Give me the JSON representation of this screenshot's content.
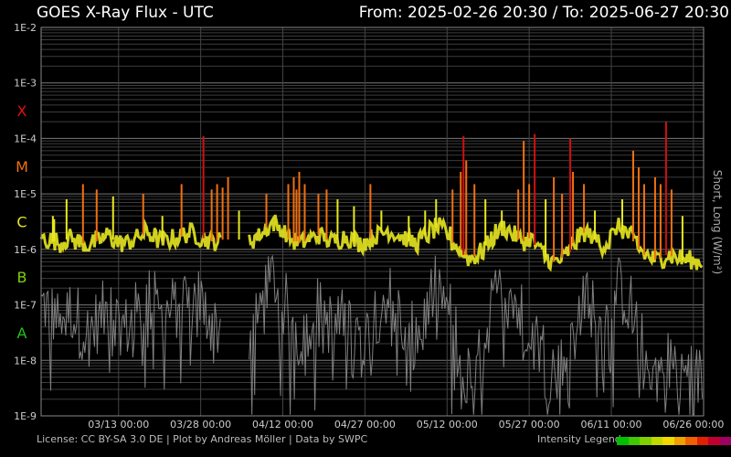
{
  "header": {
    "title": "GOES X-Ray Flux - UTC",
    "range": "From: 2025-02-26 20:30  /  To: 2025-06-27 20:30"
  },
  "footer": {
    "license": "License: CC BY-SA 3.0 DE | Plot by Andreas Möller | Data by SWPC",
    "legend_label": "Intensity Legend",
    "legend_colors": [
      "#00c000",
      "#40c800",
      "#80d000",
      "#c0d800",
      "#f0d800",
      "#f0a000",
      "#f06000",
      "#e02000",
      "#c00030",
      "#a00060"
    ]
  },
  "chart_data": {
    "type": "line",
    "title": "GOES X-Ray Flux - UTC",
    "ylabel": "Short, Long (W/m²)",
    "y_scale": "log",
    "ylim": [
      1e-09,
      0.01
    ],
    "y_ticks": [
      "1E-2",
      "1E-3",
      "1E-4",
      "1E-5",
      "1E-6",
      "1E-7",
      "1E-8",
      "1E-9"
    ],
    "flare_classes": [
      {
        "label": "X",
        "color": "#e01010"
      },
      {
        "label": "M",
        "color": "#f07010"
      },
      {
        "label": "C",
        "color": "#e8e820"
      },
      {
        "label": "B",
        "color": "#80d010"
      },
      {
        "label": "A",
        "color": "#20c020"
      }
    ],
    "xlim": [
      "2025-02-26 20:30",
      "2025-06-27 20:30"
    ],
    "x_ticks": [
      "03/13 00:00",
      "03/28 00:00",
      "04/12 00:00",
      "04/27 00:00",
      "05/12 00:00",
      "05/27 00:00",
      "06/11 00:00",
      "06/26 00:00"
    ],
    "grid": true,
    "series": [
      {
        "name": "Long",
        "color": "#e8e820",
        "daily_baseline": [
          1.6e-06,
          1.5e-06,
          1.4e-06,
          1.3e-06,
          1.5e-06,
          1.6e-06,
          1.4e-06,
          1.3e-06,
          1.2e-06,
          1.3e-06,
          1.4e-06,
          1.6e-06,
          1.8e-06,
          1.5e-06,
          1.3e-06,
          1.3e-06,
          1.4e-06,
          1.6e-06,
          1.8e-06,
          2e-06,
          1.8e-06,
          1.5e-06,
          1.4e-06,
          1.5e-06,
          1.6e-06,
          1.7e-06,
          1.9e-06,
          2e-06,
          1.8e-06,
          1.6e-06,
          1.5e-06,
          1.4e-06,
          1.4e-06,
          null,
          null,
          null,
          null,
          null,
          1.5e-06,
          1.7e-06,
          2e-06,
          2.5e-06,
          3e-06,
          2.5e-06,
          2e-06,
          1.6e-06,
          1.4e-06,
          1.3e-06,
          1.4e-06,
          1.6e-06,
          1.8e-06,
          1.7e-06,
          1.5e-06,
          1.4e-06,
          1.5e-06,
          1.7e-06,
          1.6e-06,
          1.4e-06,
          1.3e-06,
          1.4e-06,
          1.6e-06,
          1.8e-06,
          2e-06,
          2.2e-06,
          2e-06,
          1.8e-06,
          1.6e-06,
          1.4e-06,
          1.3e-06,
          1.5e-06,
          1.8e-06,
          2.2e-06,
          2.5e-06,
          2.2e-06,
          1.8e-06,
          1.3e-06,
          1e-06,
          8e-07,
          7e-07,
          7.5e-07,
          9e-07,
          1.2e-06,
          1.6e-06,
          2e-06,
          2.5e-06,
          2.2e-06,
          1.8e-06,
          1.5e-06,
          1.4e-06,
          1.6e-06,
          1.2e-06,
          9e-07,
          7e-07,
          6e-07,
          6e-07,
          7e-07,
          9e-07,
          1.3e-06,
          1.7e-06,
          2e-06,
          1.8e-06,
          1.5e-06,
          1.2e-06,
          1.3e-06,
          1.8e-06,
          2.5e-06,
          2.2e-06,
          1.8e-06,
          1.4e-06,
          1e-06,
          8e-07,
          7e-07,
          6.5e-07,
          7e-07,
          8e-07,
          7.5e-07,
          7e-07,
          6.5e-07,
          6.5e-07,
          6e-07,
          6e-07
        ],
        "peaks": [
          {
            "time": "2025-03-01 00:00",
            "value": 4e-06
          },
          {
            "time": "2025-03-01 06:00",
            "value": 3.5e-06
          },
          {
            "time": "2025-03-03 12:00",
            "value": 8e-06
          },
          {
            "time": "2025-03-06 12:00",
            "value": 1.5e-05
          },
          {
            "time": "2025-03-09 00:00",
            "value": 1.2e-05
          },
          {
            "time": "2025-03-12 00:00",
            "value": 9e-06
          },
          {
            "time": "2025-03-17 12:00",
            "value": 1e-05
          },
          {
            "time": "2025-03-21 00:00",
            "value": 4e-06
          },
          {
            "time": "2025-03-24 12:00",
            "value": 1.5e-05
          },
          {
            "time": "2025-03-28 12:00",
            "value": 0.00011
          },
          {
            "time": "2025-03-30 00:00",
            "value": 1.2e-05
          },
          {
            "time": "2025-03-31 00:00",
            "value": 1.5e-05
          },
          {
            "time": "2025-04-01 00:00",
            "value": 1.3e-05
          },
          {
            "time": "2025-04-02 00:00",
            "value": 2e-05
          },
          {
            "time": "2025-04-04 00:00",
            "value": 5e-06
          },
          {
            "time": "2025-04-09 00:00",
            "value": 1e-05
          },
          {
            "time": "2025-04-13 00:00",
            "value": 1.5e-05
          },
          {
            "time": "2025-04-14 00:00",
            "value": 2e-05
          },
          {
            "time": "2025-04-14 12:00",
            "value": 1.2e-05
          },
          {
            "time": "2025-04-15 00:00",
            "value": 2.5e-05
          },
          {
            "time": "2025-04-16 00:00",
            "value": 1.5e-05
          },
          {
            "time": "2025-04-18 12:00",
            "value": 1e-05
          },
          {
            "time": "2025-04-20 00:00",
            "value": 1.2e-05
          },
          {
            "time": "2025-04-22 00:00",
            "value": 8e-06
          },
          {
            "time": "2025-04-25 00:00",
            "value": 6e-06
          },
          {
            "time": "2025-04-28 00:00",
            "value": 1.5e-05
          },
          {
            "time": "2025-04-30 00:00",
            "value": 5e-06
          },
          {
            "time": "2025-05-05 00:00",
            "value": 4e-06
          },
          {
            "time": "2025-05-08 00:00",
            "value": 5e-06
          },
          {
            "time": "2025-05-10 00:00",
            "value": 8e-06
          },
          {
            "time": "2025-05-13 00:00",
            "value": 1.2e-05
          },
          {
            "time": "2025-05-14 12:00",
            "value": 2.5e-05
          },
          {
            "time": "2025-05-15 00:00",
            "value": 0.00011
          },
          {
            "time": "2025-05-15 12:00",
            "value": 4e-05
          },
          {
            "time": "2025-05-17 00:00",
            "value": 1.5e-05
          },
          {
            "time": "2025-05-19 00:00",
            "value": 8e-06
          },
          {
            "time": "2025-05-22 00:00",
            "value": 5e-06
          },
          {
            "time": "2025-05-25 00:00",
            "value": 1.2e-05
          },
          {
            "time": "2025-05-26 00:00",
            "value": 9e-05
          },
          {
            "time": "2025-05-27 00:00",
            "value": 1.5e-05
          },
          {
            "time": "2025-05-28 00:00",
            "value": 0.00012
          },
          {
            "time": "2025-05-30 00:00",
            "value": 8e-06
          },
          {
            "time": "2025-05-31 12:00",
            "value": 2e-05
          },
          {
            "time": "2025-06-02 00:00",
            "value": 1e-05
          },
          {
            "time": "2025-06-03 12:00",
            "value": 0.0001
          },
          {
            "time": "2025-06-04 00:00",
            "value": 2.5e-05
          },
          {
            "time": "2025-06-06 00:00",
            "value": 1.5e-05
          },
          {
            "time": "2025-06-08 00:00",
            "value": 5e-06
          },
          {
            "time": "2025-06-13 00:00",
            "value": 8e-06
          },
          {
            "time": "2025-06-15 00:00",
            "value": 6e-05
          },
          {
            "time": "2025-06-16 00:00",
            "value": 3e-05
          },
          {
            "time": "2025-06-17 00:00",
            "value": 1.5e-05
          },
          {
            "time": "2025-06-19 00:00",
            "value": 2e-05
          },
          {
            "time": "2025-06-20 00:00",
            "value": 1.5e-05
          },
          {
            "time": "2025-06-21 00:00",
            "value": 0.0002
          },
          {
            "time": "2025-06-22 00:00",
            "value": 1.2e-05
          },
          {
            "time": "2025-06-24 00:00",
            "value": 4e-06
          }
        ]
      },
      {
        "name": "Short",
        "color": "#808080",
        "daily_baseline": [
          1e-07,
          9e-08,
          7e-08,
          5e-08,
          6e-08,
          8e-08,
          6e-08,
          4e-08,
          3e-08,
          4e-08,
          5e-08,
          7e-08,
          9e-08,
          7e-08,
          5e-08,
          4e-08,
          5e-08,
          7e-08,
          1e-07,
          1.3e-07,
          1.1e-07,
          8e-08,
          6e-08,
          7e-08,
          9e-08,
          1.2e-07,
          1.5e-07,
          1.6e-07,
          1.3e-07,
          1e-07,
          7e-08,
          5e-08,
          4e-08,
          null,
          null,
          null,
          null,
          null,
          3e-08,
          5e-08,
          1e-07,
          2e-07,
          3e-07,
          2e-07,
          1e-07,
          6e-08,
          4e-08,
          3e-08,
          4e-08,
          6e-08,
          9e-08,
          8e-08,
          5e-08,
          3e-08,
          4e-08,
          6e-08,
          5e-08,
          3e-08,
          2e-08,
          3e-08,
          5e-08,
          8e-08,
          1.2e-07,
          1.5e-07,
          1.2e-07,
          8e-08,
          5e-08,
          3e-08,
          2e-08,
          3e-08,
          7e-08,
          1.5e-07,
          2e-07,
          1.5e-07,
          8e-08,
          3e-08,
          1e-08,
          6e-09,
          5e-09,
          6e-09,
          1e-08,
          3e-08,
          8e-08,
          1.5e-07,
          2.5e-07,
          2e-07,
          1.2e-07,
          7e-08,
          5e-08,
          8e-08,
          4e-08,
          1.5e-08,
          8e-09,
          6e-09,
          6e-09,
          8e-09,
          1.5e-08,
          4e-08,
          1e-07,
          1.5e-07,
          1.2e-07,
          8e-08,
          4e-08,
          5e-08,
          1.2e-07,
          2e-07,
          1.5e-07,
          1e-07,
          5e-08,
          2e-08,
          1e-08,
          7e-09,
          6e-09,
          8e-09,
          1e-08,
          9e-09,
          7e-09,
          6e-09,
          6e-09,
          5e-09,
          5e-09
        ]
      }
    ]
  }
}
